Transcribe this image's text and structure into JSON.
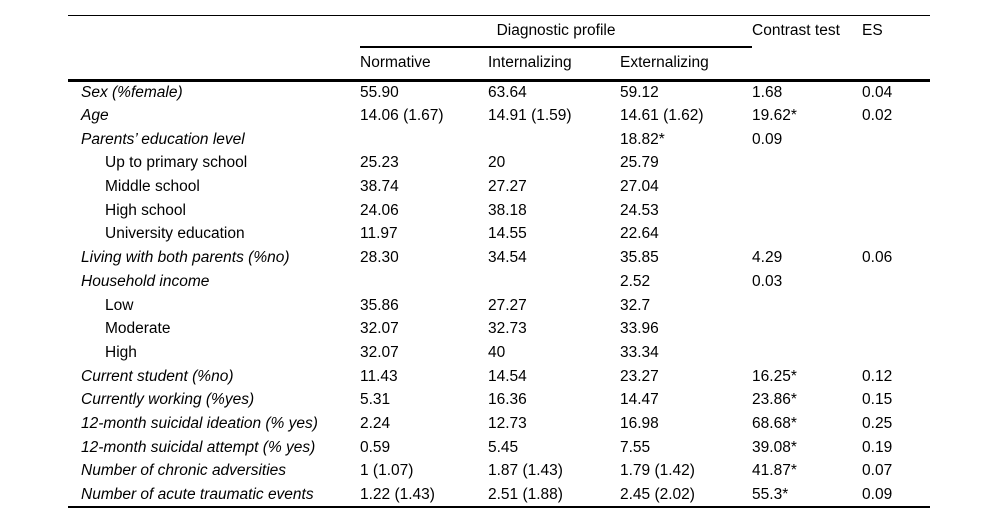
{
  "table": {
    "group_header": "Diagnostic profile",
    "contrast_header": "Contrast test",
    "es_header": "ES",
    "sub_headers": [
      "Normative",
      "Internalizing",
      "Externalizing"
    ],
    "rows": [
      {
        "label": "Sex (%female)",
        "indent": false,
        "values": [
          "55.90",
          "63.64",
          "59.12",
          "1.68",
          "0.04"
        ]
      },
      {
        "label": "Age",
        "indent": false,
        "values": [
          "14.06 (1.67)",
          "14.91 (1.59)",
          "14.61 (1.62)",
          "19.62*",
          "0.02"
        ]
      },
      {
        "label": "Parents’ education level",
        "indent": false,
        "values": [
          "",
          "",
          "18.82*",
          "0.09",
          ""
        ]
      },
      {
        "label": "Up to primary school",
        "indent": true,
        "values": [
          "25.23",
          "20",
          "25.79",
          "",
          ""
        ]
      },
      {
        "label": "Middle school",
        "indent": true,
        "values": [
          "38.74",
          "27.27",
          "27.04",
          "",
          ""
        ]
      },
      {
        "label": "High school",
        "indent": true,
        "values": [
          "24.06",
          "38.18",
          "24.53",
          "",
          ""
        ]
      },
      {
        "label": "University education",
        "indent": true,
        "values": [
          "11.97",
          "14.55",
          "22.64",
          "",
          ""
        ]
      },
      {
        "label": "Living with both parents (%no)",
        "indent": false,
        "values": [
          "28.30",
          "34.54",
          "35.85",
          "4.29",
          "0.06"
        ]
      },
      {
        "label": "Household income",
        "indent": false,
        "values": [
          "",
          "",
          "2.52",
          "0.03",
          ""
        ]
      },
      {
        "label": "Low",
        "indent": true,
        "values": [
          "35.86",
          "27.27",
          "32.7",
          "",
          ""
        ]
      },
      {
        "label": "Moderate",
        "indent": true,
        "values": [
          "32.07",
          "32.73",
          "33.96",
          "",
          ""
        ]
      },
      {
        "label": "High",
        "indent": true,
        "values": [
          "32.07",
          "40",
          "33.34",
          "",
          ""
        ]
      },
      {
        "label": "Current student (%no)",
        "indent": false,
        "values": [
          "11.43",
          "14.54",
          "23.27",
          "16.25*",
          "0.12"
        ]
      },
      {
        "label": "Currently working (%yes)",
        "indent": false,
        "values": [
          "5.31",
          "16.36",
          "14.47",
          "23.86*",
          "0.15"
        ]
      },
      {
        "label": "12-month suicidal ideation (% yes)",
        "indent": false,
        "values": [
          "2.24",
          "12.73",
          "16.98",
          "68.68*",
          "0.25"
        ]
      },
      {
        "label": "12-month suicidal attempt (% yes)",
        "indent": false,
        "values": [
          "0.59",
          "5.45",
          "7.55",
          "39.08*",
          "0.19"
        ]
      },
      {
        "label": "Number of chronic adversities",
        "indent": false,
        "values": [
          "1 (1.07)",
          "1.87 (1.43)",
          "1.79 (1.42)",
          "41.87*",
          "0.07"
        ]
      },
      {
        "label": "Number of acute traumatic events",
        "indent": false,
        "values": [
          "1.22 (1.43)",
          "2.51 (1.88)",
          "2.45 (2.02)",
          "55.3*",
          "0.09"
        ]
      }
    ]
  }
}
